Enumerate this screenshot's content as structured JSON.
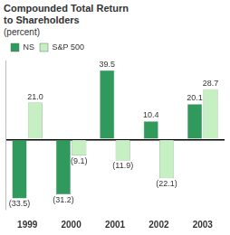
{
  "chart_data": {
    "type": "bar",
    "title": "Compounded Total Return to Shareholders",
    "subtitle": "(percent)",
    "categories": [
      "1999",
      "2000",
      "2001",
      "2002",
      "2003"
    ],
    "series": [
      {
        "name": "NS",
        "color": "#2f9a5c",
        "values": [
          -33.5,
          -31.2,
          39.5,
          10.4,
          20.1
        ],
        "value_labels": [
          "(33.5)",
          "(31.2)",
          "39.5",
          "10.4",
          "20.1"
        ]
      },
      {
        "name": "S&P 500",
        "color": "#c6efc2",
        "values": [
          21.0,
          -9.1,
          -11.9,
          -22.1,
          28.7
        ],
        "value_labels": [
          "21.0",
          "(9.1)",
          "(11.9)",
          "(22.1)",
          "28.7"
        ]
      }
    ],
    "ylim": [
      -40,
      45
    ],
    "yticks": [
      0
    ],
    "grid": true,
    "legend": "upper left",
    "data_labels": true,
    "tick_labels": "x"
  }
}
